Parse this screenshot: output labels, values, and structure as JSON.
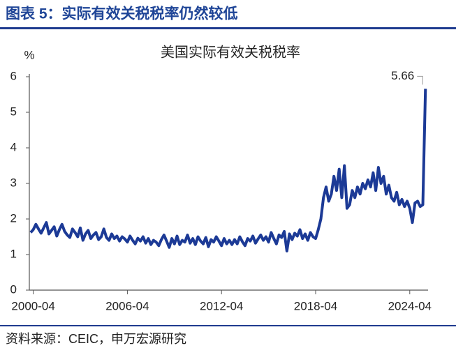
{
  "header": {
    "title": "图表 5：实际有效关税税率仍然较低"
  },
  "chart_data": {
    "type": "line",
    "title": "美国实际有效关税税率",
    "y_label": "%",
    "x": [
      "2000-02",
      "2000-04",
      "2000-06",
      "2000-08",
      "2000-10",
      "2000-12",
      "2001-02",
      "2001-04",
      "2001-06",
      "2001-08",
      "2001-10",
      "2001-12",
      "2002-02",
      "2002-04",
      "2002-06",
      "2002-08",
      "2002-10",
      "2002-12",
      "2003-02",
      "2003-04",
      "2003-06",
      "2003-08",
      "2003-10",
      "2003-12",
      "2004-02",
      "2004-04",
      "2004-06",
      "2004-08",
      "2004-10",
      "2004-12",
      "2005-02",
      "2005-04",
      "2005-06",
      "2005-08",
      "2005-10",
      "2005-12",
      "2006-02",
      "2006-04",
      "2006-06",
      "2006-08",
      "2006-10",
      "2006-12",
      "2007-02",
      "2007-04",
      "2007-06",
      "2007-08",
      "2007-10",
      "2007-12",
      "2008-02",
      "2008-04",
      "2008-06",
      "2008-08",
      "2008-10",
      "2008-12",
      "2009-02",
      "2009-04",
      "2009-06",
      "2009-08",
      "2009-10",
      "2009-12",
      "2010-02",
      "2010-04",
      "2010-06",
      "2010-08",
      "2010-10",
      "2010-12",
      "2011-02",
      "2011-04",
      "2011-06",
      "2011-08",
      "2011-10",
      "2011-12",
      "2012-02",
      "2012-04",
      "2012-06",
      "2012-08",
      "2012-10",
      "2012-12",
      "2013-02",
      "2013-04",
      "2013-06",
      "2013-08",
      "2013-10",
      "2013-12",
      "2014-02",
      "2014-04",
      "2014-06",
      "2014-08",
      "2014-10",
      "2014-12",
      "2015-02",
      "2015-04",
      "2015-06",
      "2015-08",
      "2015-10",
      "2015-12",
      "2016-02",
      "2016-04",
      "2016-06",
      "2016-08",
      "2016-10",
      "2016-12",
      "2017-02",
      "2017-04",
      "2017-06",
      "2017-08",
      "2017-10",
      "2017-12",
      "2018-02",
      "2018-04",
      "2018-06",
      "2018-08",
      "2018-10",
      "2018-12",
      "2019-02",
      "2019-04",
      "2019-06",
      "2019-08",
      "2019-10",
      "2019-12",
      "2020-02",
      "2020-04",
      "2020-06",
      "2020-08",
      "2020-10",
      "2020-12",
      "2021-02",
      "2021-04",
      "2021-06",
      "2021-08",
      "2021-10",
      "2021-12",
      "2022-02",
      "2022-04",
      "2022-06",
      "2022-08",
      "2022-10",
      "2022-12",
      "2023-02",
      "2023-04",
      "2023-06",
      "2023-08",
      "2023-10",
      "2023-12",
      "2024-02",
      "2024-04",
      "2024-06",
      "2024-08",
      "2024-10",
      "2024-12",
      "2025-02",
      "2025-04"
    ],
    "series": [
      {
        "name": "美国实际有效关税税率",
        "color": "#1c3a96",
        "values": [
          1.62,
          1.7,
          1.85,
          1.72,
          1.6,
          1.75,
          1.9,
          1.58,
          1.68,
          1.78,
          1.52,
          1.7,
          1.85,
          1.65,
          1.55,
          1.48,
          1.72,
          1.62,
          1.5,
          1.75,
          1.4,
          1.58,
          1.68,
          1.45,
          1.55,
          1.62,
          1.42,
          1.5,
          1.72,
          1.48,
          1.4,
          1.58,
          1.45,
          1.52,
          1.38,
          1.5,
          1.44,
          1.35,
          1.52,
          1.4,
          1.3,
          1.46,
          1.38,
          1.5,
          1.32,
          1.45,
          1.28,
          1.4,
          1.35,
          1.25,
          1.42,
          1.55,
          1.38,
          1.2,
          1.45,
          1.3,
          1.52,
          1.28,
          1.4,
          1.35,
          1.55,
          1.32,
          1.45,
          1.28,
          1.5,
          1.38,
          1.3,
          1.48,
          1.22,
          1.42,
          1.35,
          1.5,
          1.38,
          1.25,
          1.45,
          1.3,
          1.4,
          1.28,
          1.42,
          1.3,
          1.5,
          1.36,
          1.25,
          1.45,
          1.38,
          1.52,
          1.32,
          1.44,
          1.55,
          1.4,
          1.5,
          1.35,
          1.62,
          1.45,
          1.3,
          1.55,
          1.48,
          1.65,
          1.1,
          1.58,
          1.42,
          1.6,
          1.52,
          1.7,
          1.45,
          1.58,
          1.4,
          1.62,
          1.5,
          1.45,
          1.7,
          2.0,
          2.6,
          2.9,
          2.5,
          2.7,
          3.2,
          2.8,
          3.4,
          2.6,
          3.5,
          2.3,
          2.4,
          2.8,
          2.6,
          2.9,
          2.7,
          3.0,
          2.85,
          3.1,
          2.9,
          3.3,
          2.8,
          3.45,
          3.0,
          3.2,
          2.7,
          2.95,
          2.6,
          2.5,
          2.75,
          2.4,
          2.55,
          2.35,
          2.5,
          2.3,
          1.9,
          2.45,
          2.5,
          2.35,
          2.4,
          5.66
        ]
      }
    ],
    "xlim": [
      "2000-01",
      "2025-06"
    ],
    "xticks": [
      "2000-04",
      "2006-04",
      "2012-04",
      "2018-04",
      "2024-04"
    ],
    "ylim": [
      0,
      6
    ],
    "yticks": [
      0,
      1,
      2,
      3,
      4,
      5,
      6
    ],
    "grid": false
  },
  "source": "资料来源：CEIC，申万宏源研究"
}
